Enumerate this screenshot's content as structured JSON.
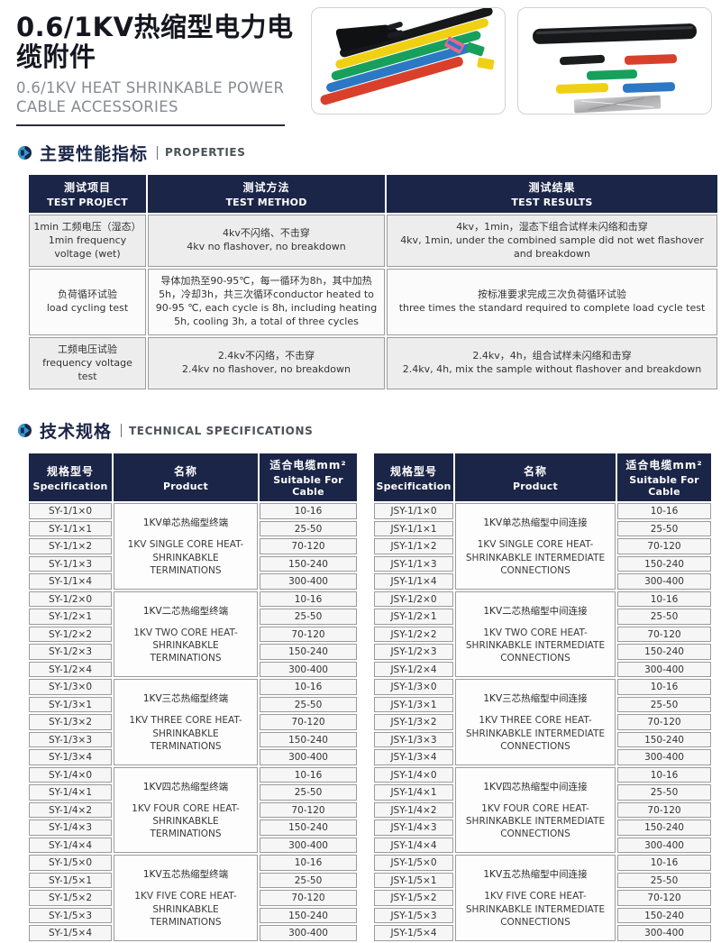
{
  "colors": {
    "header_navy": "#1b2547",
    "accent_blue": "#2f9ad2",
    "tube_red": "#d8402c",
    "tube_blue": "#2b78c5",
    "tube_green": "#17a05c",
    "tube_yellow": "#f0d013",
    "tube_black": "#17181a",
    "tube_pink": "#e2688f"
  },
  "icons": {
    "section_bullet": "arrow-right-circle"
  },
  "header": {
    "title_zh": "0.6/1KV热缩型电力电缆附件",
    "subtitle_en_line1": "0.6/1KV HEAT SHRINKABLE POWER",
    "subtitle_en_line2": "CABLE ACCESSORIES"
  },
  "properties": {
    "section_zh": "主要性能指标",
    "section_en": "PROPERTIES",
    "columns": [
      {
        "zh": "测试项目",
        "en": "TEST PROJECT"
      },
      {
        "zh": "测试方法",
        "en": "TEST METHOD"
      },
      {
        "zh": "测试结果",
        "en": "TEST RESULTS"
      }
    ],
    "rows": [
      {
        "project_zh": "1min 工频电压（湿态）",
        "project_en": "1min frequency voltage (wet)",
        "method_zh": "4kv不闪络、不击穿",
        "method_en": "4kv no flashover, no breakdown",
        "method_inline": false,
        "result_zh": "4kv，1min，湿态下组合试样未闪络和击穿",
        "result_en": "4kv, 1min, under the combined sample did not wet flashover and breakdown"
      },
      {
        "project_zh": "负荷循环试验",
        "project_en": "load cycling test",
        "method_zh": "导体加热至90-95℃，每一循环为8h，其中加热5h，冷却3h，共三次循环",
        "method_en": "conductor heated to 90-95 ℃, each cycle is 8h, including heating 5h, cooling 3h, a total of three cycles",
        "method_inline": true,
        "result_zh": "按标准要求完成三次负荷循环试验",
        "result_en": "three times the standard required to complete load cycle test"
      },
      {
        "project_zh": "工频电压试验",
        "project_en": "frequency voltage test",
        "method_zh": "2.4kv不闪络，不击穿",
        "method_en": "2.4kv no flashover, no breakdown",
        "method_inline": false,
        "result_zh": "2.4kv，4h，组合试样未闪络和击穿",
        "result_en": "2.4kv, 4h, mix the sample without flashover and breakdown"
      }
    ]
  },
  "specs": {
    "section_zh": "技术规格",
    "section_en": "TECHNICAL SPECIFICATIONS",
    "columns": [
      {
        "zh": "规格型号",
        "en": "Specification"
      },
      {
        "zh": "名称",
        "en": "Product"
      },
      {
        "zh": "适合电缆mm²",
        "en": "Suitable For Cable"
      }
    ],
    "tables": [
      {
        "groups": [
          {
            "models": [
              "SY-1/1×0",
              "SY-1/1×1",
              "SY-1/1×2",
              "SY-1/1×3",
              "SY-1/1×4"
            ],
            "product_zh": "1KV单芯热缩型终端",
            "product_en": "1KV SINGLE CORE HEAT-SHRINKABKLE TERMINATIONS",
            "ranges": [
              "10-16",
              "25-50",
              "70-120",
              "150-240",
              "300-400"
            ]
          },
          {
            "models": [
              "SY-1/2×0",
              "SY-1/2×1",
              "SY-1/2×2",
              "SY-1/2×3",
              "SY-1/2×4"
            ],
            "product_zh": "1KV二芯热缩型终端",
            "product_en": "1KV TWO CORE HEAT-SHRINKABKLE TERMINATIONS",
            "ranges": [
              "10-16",
              "25-50",
              "70-120",
              "150-240",
              "300-400"
            ]
          },
          {
            "models": [
              "SY-1/3×0",
              "SY-1/3×1",
              "SY-1/3×2",
              "SY-1/3×3",
              "SY-1/3×4"
            ],
            "product_zh": "1KV三芯热缩型终端",
            "product_en": "1KV THREE CORE HEAT-SHRINKABKLE TERMINATIONS",
            "ranges": [
              "10-16",
              "25-50",
              "70-120",
              "150-240",
              "300-400"
            ]
          },
          {
            "models": [
              "SY-1/4×0",
              "SY-1/4×1",
              "SY-1/4×2",
              "SY-1/4×3",
              "SY-1/4×4"
            ],
            "product_zh": "1KV四芯热缩型终端",
            "product_en": "1KV FOUR CORE HEAT-SHRINKABKLE TERMINATIONS",
            "ranges": [
              "10-16",
              "25-50",
              "70-120",
              "150-240",
              "300-400"
            ]
          },
          {
            "models": [
              "SY-1/5×0",
              "SY-1/5×1",
              "SY-1/5×2",
              "SY-1/5×3",
              "SY-1/5×4"
            ],
            "product_zh": "1KV五芯热缩型终端",
            "product_en": "1KV FIVE CORE HEAT-SHRINKABKLE TERMINATIONS",
            "ranges": [
              "10-16",
              "25-50",
              "70-120",
              "150-240",
              "300-400"
            ]
          }
        ]
      },
      {
        "groups": [
          {
            "models": [
              "JSY-1/1×0",
              "JSY-1/1×1",
              "JSY-1/1×2",
              "JSY-1/1×3",
              "JSY-1/1×4"
            ],
            "product_zh": "1KV单芯热缩型中间连接",
            "product_en": "1KV SINGLE CORE HEAT-SHRINKABKLE INTERMEDIATE CONNECTIONS",
            "ranges": [
              "10-16",
              "25-50",
              "70-120",
              "150-240",
              "300-400"
            ]
          },
          {
            "models": [
              "JSY-1/2×0",
              "JSY-1/2×1",
              "JSY-1/2×2",
              "JSY-1/2×3",
              "JSY-1/2×4"
            ],
            "product_zh": "1KV二芯热缩型中间连接",
            "product_en": "1KV TWO CORE HEAT-SHRINKABKLE INTERMEDIATE CONNECTIONS",
            "ranges": [
              "10-16",
              "25-50",
              "70-120",
              "150-240",
              "300-400"
            ]
          },
          {
            "models": [
              "JSY-1/3×0",
              "JSY-1/3×1",
              "JSY-1/3×2",
              "JSY-1/3×3",
              "JSY-1/3×4"
            ],
            "product_zh": "1KV三芯热缩型中间连接",
            "product_en": "1KV THREE CORE HEAT-SHRINKABKLE INTERMEDIATE CONNECTIONS",
            "ranges": [
              "10-16",
              "25-50",
              "70-120",
              "150-240",
              "300-400"
            ]
          },
          {
            "models": [
              "JSY-1/4×0",
              "JSY-1/4×1",
              "JSY-1/4×2",
              "JSY-1/4×3",
              "JSY-1/4×4"
            ],
            "product_zh": "1KV四芯热缩型中间连接",
            "product_en": "1KV FOUR CORE HEAT-SHRINKABKLE INTERMEDIATE CONNECTIONS",
            "ranges": [
              "10-16",
              "25-50",
              "70-120",
              "150-240",
              "300-400"
            ]
          },
          {
            "models": [
              "JSY-1/5×0",
              "JSY-1/5×1",
              "JSY-1/5×2",
              "JSY-1/5×3",
              "JSY-1/5×4"
            ],
            "product_zh": "1KV五芯热缩型中间连接",
            "product_en": "1KV FIVE CORE HEAT-SHRINKABKLE INTERMEDIATE CONNECTIONS",
            "ranges": [
              "10-16",
              "25-50",
              "70-120",
              "150-240",
              "300-400"
            ]
          }
        ]
      }
    ]
  }
}
